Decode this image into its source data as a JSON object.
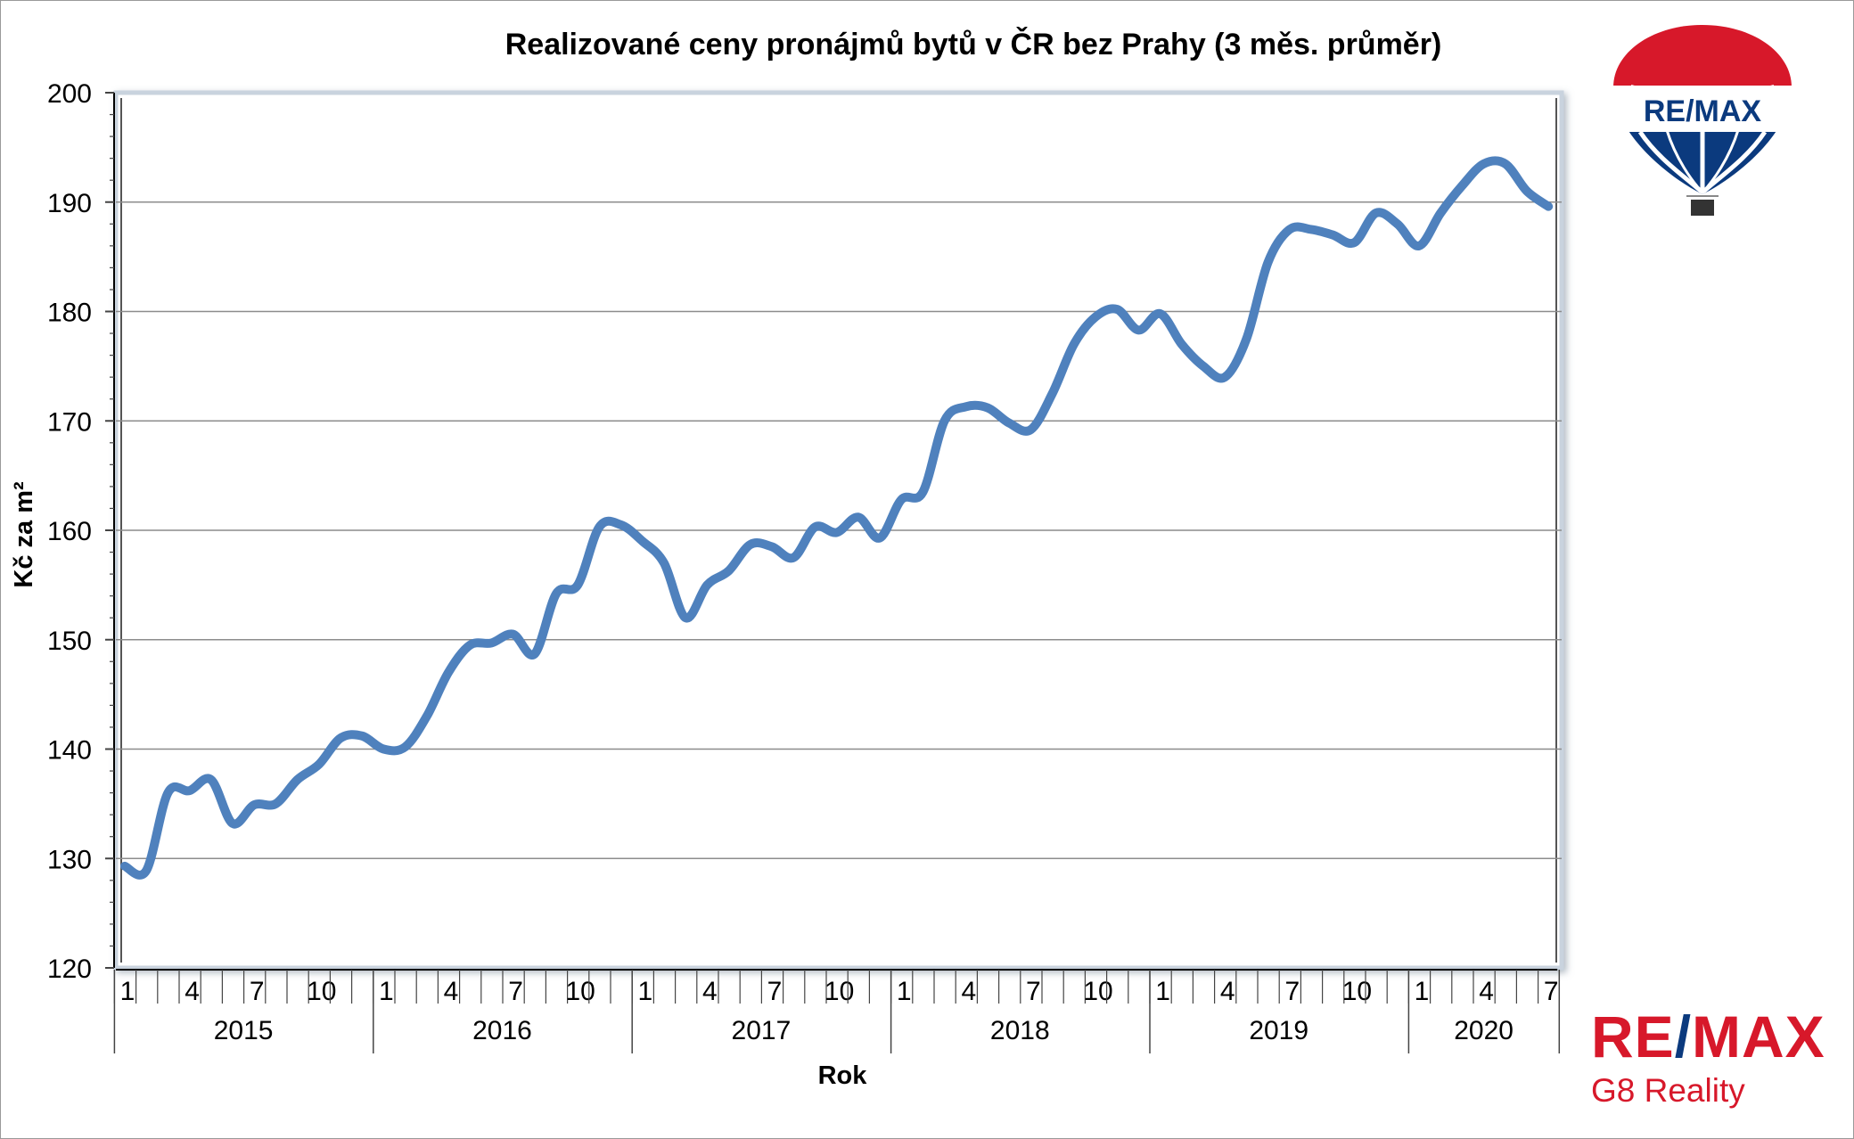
{
  "chart_data": {
    "type": "line",
    "title": "Realizované ceny pronájmů bytů v ČR bez Prahy (3 měs. průměr)",
    "xlabel": "Rok",
    "ylabel": "Kč za m²",
    "ylim": [
      120,
      200
    ],
    "yticks": [
      "120",
      "130",
      "140",
      "150",
      "160",
      "170",
      "180",
      "190",
      "200"
    ],
    "month_tick_labels": [
      "1",
      "4",
      "7",
      "10"
    ],
    "years": [
      "2015",
      "2016",
      "2017",
      "2018",
      "2019",
      "2020"
    ],
    "grid": "horizontal",
    "series_color": "#4f81bd",
    "series": [
      {
        "values": [
          129.3,
          128.9,
          136.0,
          136.2,
          137.2,
          133.2,
          134.9,
          135.0,
          137.2,
          138.6,
          141.0,
          141.2,
          140.0,
          140.2,
          143.0,
          147.0,
          149.5,
          149.7,
          150.5,
          148.7,
          154.2,
          155.0,
          160.3,
          160.5,
          159.0,
          157.0,
          152.0,
          155.0,
          156.3,
          158.7,
          158.5,
          157.5,
          160.3,
          159.8,
          161.2,
          159.3,
          162.8,
          163.5,
          170.0,
          171.3,
          171.2,
          169.8,
          169.2,
          172.5,
          177.0,
          179.5,
          180.2,
          178.3,
          179.8,
          177.0,
          175.0,
          174.0,
          177.5,
          184.5,
          187.5,
          187.5,
          187.0,
          186.3,
          189.0,
          188.0,
          186.0,
          189.0,
          191.5,
          193.5,
          193.5,
          191.0,
          189.6
        ]
      }
    ]
  },
  "logo": {
    "balloon_text": "RE/MAX",
    "brand_left": "RE",
    "brand_slash": "/",
    "brand_right": "MAX",
    "brand_sub": "G8 Reality"
  }
}
